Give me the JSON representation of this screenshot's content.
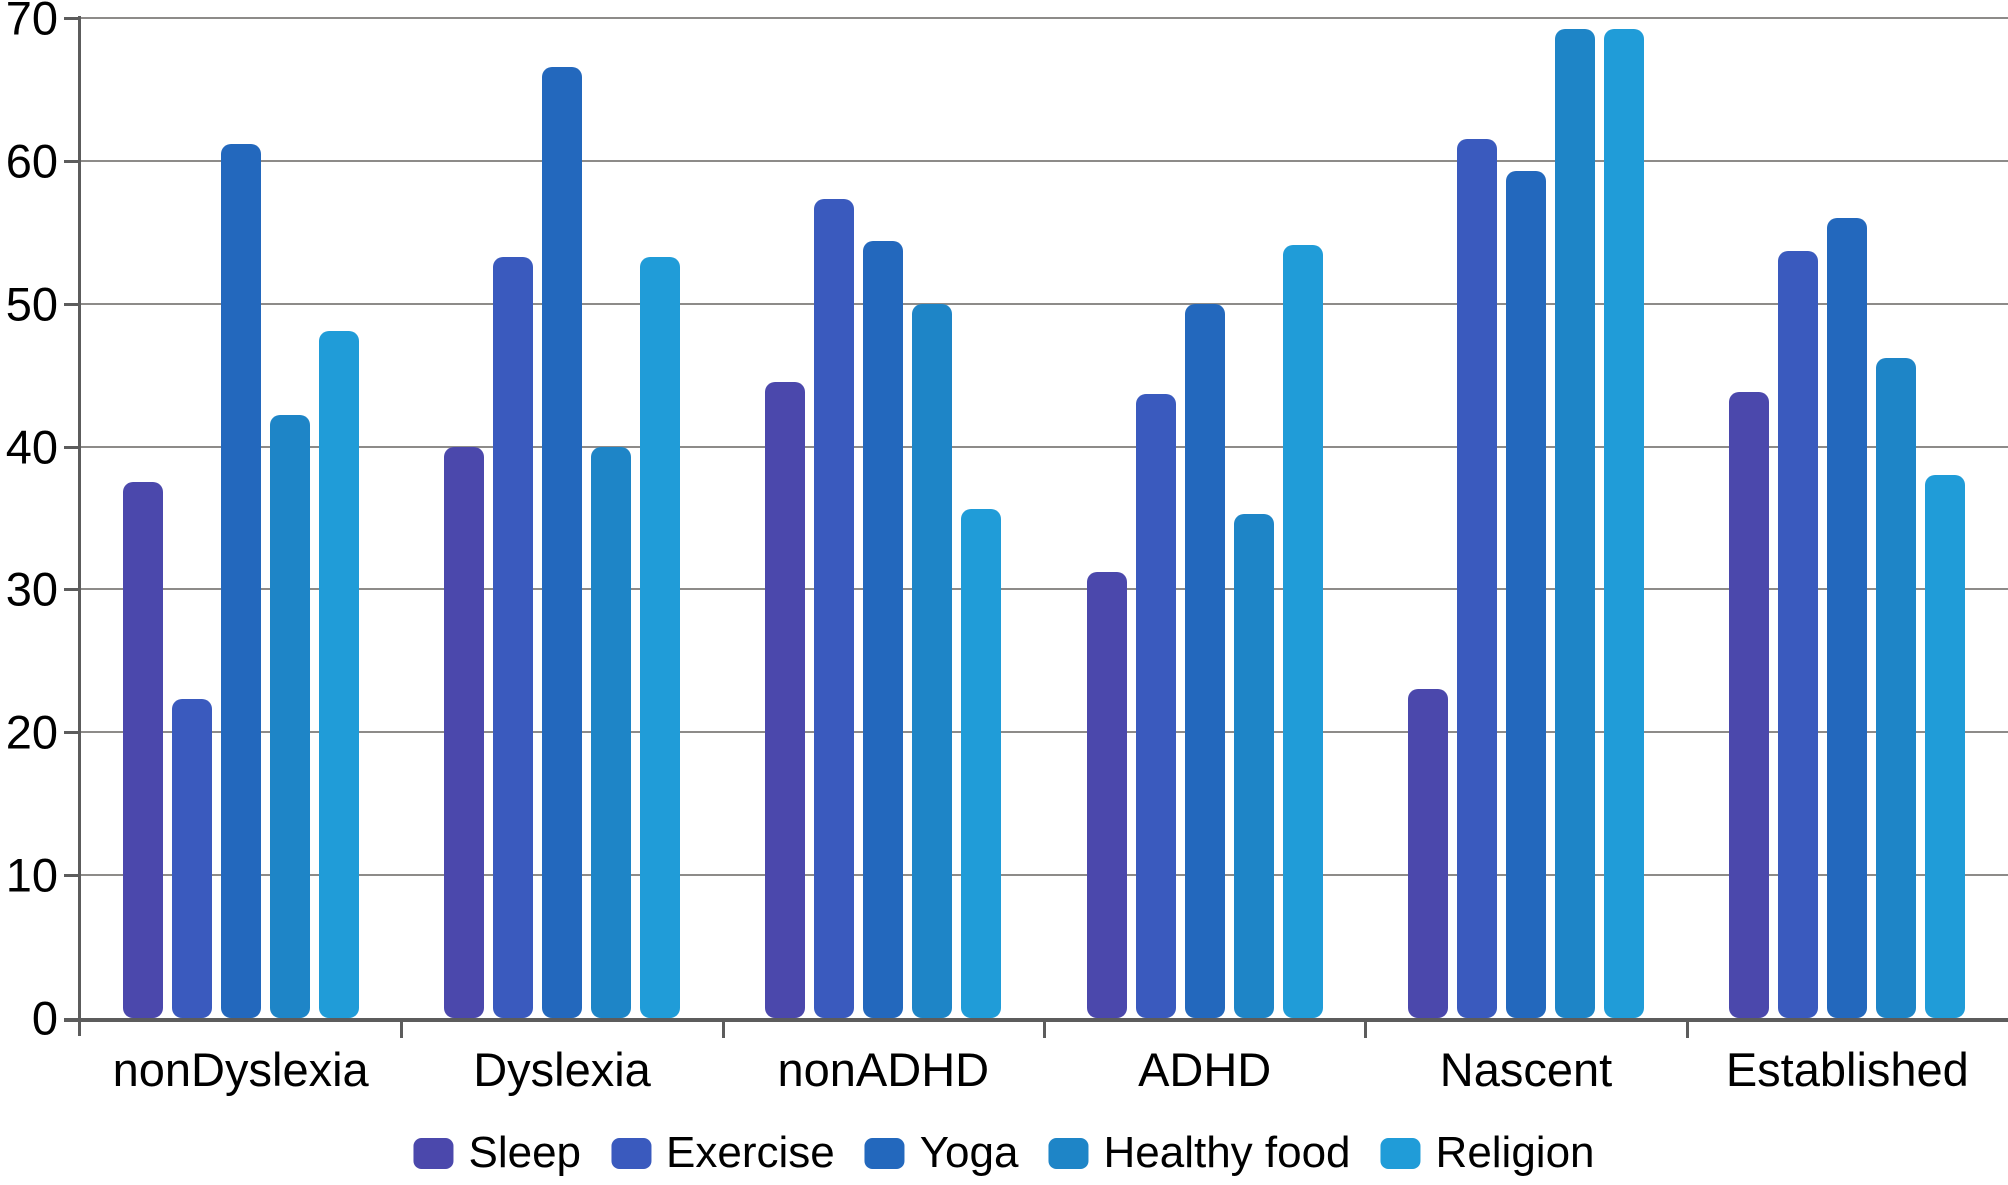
{
  "chart_data": {
    "type": "bar",
    "title": "",
    "xlabel": "",
    "ylabel": "",
    "ylim": [
      0,
      70
    ],
    "ytick_step": 10,
    "grid": "horizontal",
    "legend_position": "bottom",
    "categories": [
      "nonDyslexia",
      "Dyslexia",
      "nonADHD",
      "ADHD",
      "Nascent",
      "Established"
    ],
    "series": [
      {
        "name": "Sleep",
        "color": "#4b48ac",
        "values": [
          37.5,
          40.0,
          44.5,
          31.2,
          23.0,
          43.8
        ]
      },
      {
        "name": "Exercise",
        "color": "#3a5abe",
        "values": [
          22.3,
          53.3,
          57.3,
          43.7,
          61.5,
          53.7
        ]
      },
      {
        "name": "Yoga",
        "color": "#2368bd",
        "values": [
          61.2,
          66.6,
          54.4,
          50.0,
          59.3,
          56.0
        ]
      },
      {
        "name": "Healthy food",
        "color": "#1e85c7",
        "values": [
          42.2,
          40.0,
          50.0,
          35.3,
          69.2,
          46.2
        ]
      },
      {
        "name": "Religion",
        "color": "#209cd8",
        "values": [
          48.1,
          53.3,
          35.6,
          54.1,
          69.2,
          38.0
        ]
      }
    ],
    "axis_color": "#5c5c5c",
    "gridline_color": "#8d8b89",
    "y_axis_tick_labels": [
      "0",
      "10",
      "20",
      "30",
      "40",
      "50",
      "60",
      "70"
    ]
  }
}
